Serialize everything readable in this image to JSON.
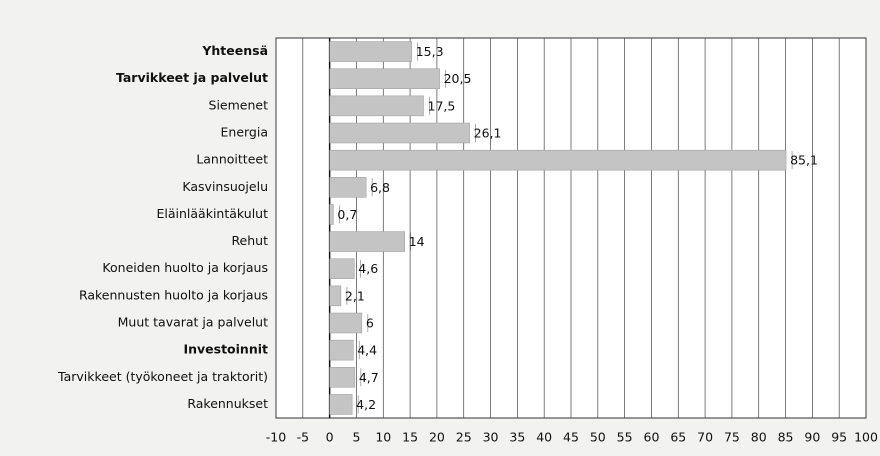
{
  "chart_data": {
    "type": "hbar",
    "categories": [
      "Yhteensä",
      "Tarvikkeet ja palvelut",
      "Siemenet",
      "Energia",
      "Lannoitteet",
      "Kasvinsuojelu",
      "Eläinlääkintäkulut",
      "Rehut",
      "Koneiden huolto ja korjaus",
      "Rakennusten huolto ja korjaus",
      "Muut tavarat ja palvelut",
      "Investoinnit",
      "Tarvikkeet (työkoneet ja traktorit)",
      "Rakennukset"
    ],
    "values": [
      15.3,
      20.5,
      17.5,
      26.1,
      85.1,
      6.8,
      0.7,
      14,
      4.6,
      2.1,
      6,
      4.4,
      4.7,
      4.2
    ],
    "value_labels": [
      "15,3",
      "20,5",
      "17,5",
      "26,1",
      "85,1",
      "6,8",
      "0,7",
      "14",
      "4,6",
      "2,1",
      "6",
      "4,4",
      "4,7",
      "4,2"
    ],
    "bold_categories": [
      0,
      1,
      11
    ],
    "color": "#c4c4c4",
    "xlim": [
      -10,
      100
    ],
    "xticks": [
      -10,
      -5,
      0,
      5,
      10,
      15,
      20,
      25,
      30,
      35,
      40,
      45,
      50,
      55,
      60,
      65,
      70,
      75,
      80,
      85,
      90,
      95,
      100
    ],
    "grid": true
  }
}
